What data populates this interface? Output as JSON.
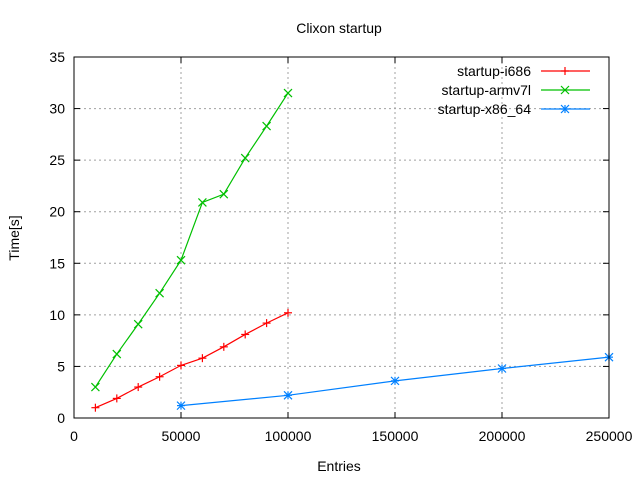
{
  "chart_data": {
    "type": "line",
    "title": "Clixon startup",
    "xlabel": "Entries",
    "ylabel": "Time[s]",
    "xlim": [
      0,
      250000
    ],
    "ylim": [
      0,
      35
    ],
    "xticks": [
      0,
      50000,
      100000,
      150000,
      200000,
      250000
    ],
    "yticks": [
      0,
      5,
      10,
      15,
      20,
      25,
      30,
      35
    ],
    "grid": true,
    "legend_position": "top-right",
    "series": [
      {
        "name": "startup-i686",
        "color": "#ff0000",
        "marker": "plus",
        "x": [
          10000,
          20000,
          30000,
          40000,
          50000,
          60000,
          70000,
          80000,
          90000,
          100000
        ],
        "y": [
          1.0,
          1.9,
          3.0,
          4.0,
          5.1,
          5.8,
          6.9,
          8.1,
          9.2,
          10.2
        ]
      },
      {
        "name": "startup-armv7l",
        "color": "#00c000",
        "marker": "cross",
        "x": [
          10000,
          20000,
          30000,
          40000,
          50000,
          60000,
          70000,
          80000,
          90000,
          100000
        ],
        "y": [
          3.0,
          6.2,
          9.1,
          12.1,
          15.3,
          20.9,
          21.7,
          25.2,
          28.3,
          31.5
        ]
      },
      {
        "name": "startup-x86_64",
        "color": "#0080ff",
        "marker": "star",
        "x": [
          50000,
          100000,
          150000,
          200000,
          250000
        ],
        "y": [
          1.2,
          2.2,
          3.6,
          4.8,
          5.9
        ]
      }
    ]
  }
}
